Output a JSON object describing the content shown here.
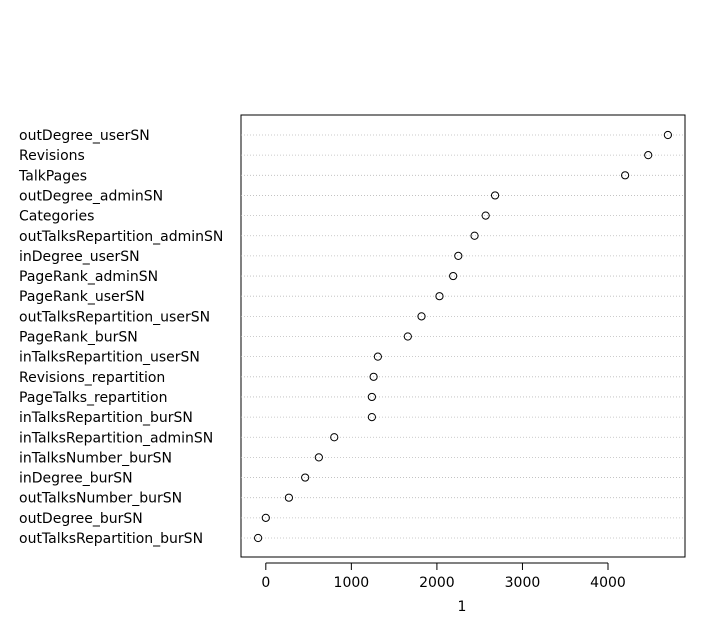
{
  "chart_data": {
    "type": "dot",
    "xlabel": "1",
    "categories": [
      "outDegree_userSN",
      "Revisions",
      "TalkPages",
      "outDegree_adminSN",
      "Categories",
      "outTalksRepartition_adminSN",
      "inDegree_userSN",
      "PageRank_adminSN",
      "PageRank_userSN",
      "outTalksRepartition_userSN",
      "PageRank_burSN",
      "inTalksRepartition_userSN",
      "Revisions_repartition",
      "PageTalks_repartition",
      "inTalksRepartition_burSN",
      "inTalksRepartition_adminSN",
      "inTalksNumber_burSN",
      "inDegree_burSN",
      "outTalksNumber_burSN",
      "outDegree_burSN",
      "outTalksRepartition_burSN"
    ],
    "values": [
      4700,
      4470,
      4200,
      2680,
      2570,
      2440,
      2250,
      2190,
      2030,
      1820,
      1660,
      1310,
      1260,
      1240,
      1240,
      800,
      620,
      460,
      270,
      0,
      -90
    ],
    "color": "#000000",
    "xlim": [
      -290,
      4900
    ],
    "xticks": [
      0,
      1000,
      2000,
      3000,
      4000
    ],
    "grid": true
  }
}
